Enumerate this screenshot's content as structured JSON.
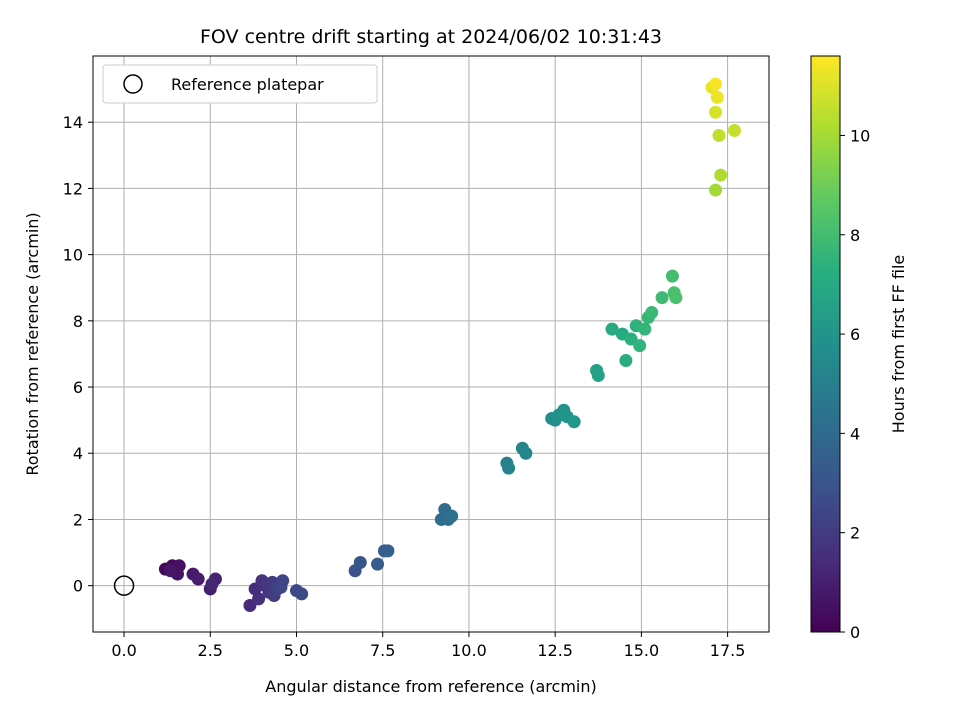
{
  "chart_data": {
    "type": "scatter",
    "title": "FOV centre drift starting at 2024/06/02 10:31:43",
    "xlabel": "Angular distance from reference (arcmin)",
    "ylabel": "Rotation from reference (arcmin)",
    "xlim": [
      -0.9,
      18.7
    ],
    "ylim": [
      -1.4,
      16.0
    ],
    "x_ticks": [
      "0.0",
      "2.5",
      "5.0",
      "7.5",
      "10.0",
      "12.5",
      "15.0",
      "17.5"
    ],
    "x_tick_values": [
      0,
      2.5,
      5,
      7.5,
      10,
      12.5,
      15,
      17.5
    ],
    "y_ticks": [
      "0",
      "2",
      "4",
      "6",
      "8",
      "10",
      "12",
      "14"
    ],
    "y_tick_values": [
      0,
      2,
      4,
      6,
      8,
      10,
      12,
      14
    ],
    "grid": true,
    "legend": {
      "placement": "top-left",
      "entries": [
        {
          "label": "Reference platepar",
          "marker": "open-circle",
          "color": "#000000"
        }
      ]
    },
    "reference_point": {
      "x": 0,
      "y": 0
    },
    "colorbar": {
      "label": "Hours from first FF file",
      "colormap": "viridis",
      "range": [
        0,
        11.6
      ],
      "ticks": [
        "0",
        "2",
        "4",
        "6",
        "8",
        "10"
      ],
      "tick_values": [
        0,
        2,
        4,
        6,
        8,
        10
      ]
    },
    "points": [
      {
        "x": 1.2,
        "y": 0.5,
        "c": 0.1
      },
      {
        "x": 1.3,
        "y": 0.5,
        "c": 0.2
      },
      {
        "x": 1.4,
        "y": 0.6,
        "c": 0.3
      },
      {
        "x": 1.5,
        "y": 0.5,
        "c": 0.4
      },
      {
        "x": 1.6,
        "y": 0.6,
        "c": 0.5
      },
      {
        "x": 1.55,
        "y": 0.35,
        "c": 0.6
      },
      {
        "x": 1.35,
        "y": 0.45,
        "c": 0.7
      },
      {
        "x": 2.0,
        "y": 0.35,
        "c": 0.8
      },
      {
        "x": 2.15,
        "y": 0.2,
        "c": 0.9
      },
      {
        "x": 2.5,
        "y": -0.1,
        "c": 1.0
      },
      {
        "x": 2.65,
        "y": 0.2,
        "c": 1.1
      },
      {
        "x": 2.55,
        "y": 0.05,
        "c": 1.2
      },
      {
        "x": 3.65,
        "y": -0.6,
        "c": 1.4
      },
      {
        "x": 3.8,
        "y": -0.1,
        "c": 1.5
      },
      {
        "x": 3.9,
        "y": -0.4,
        "c": 1.6
      },
      {
        "x": 4.0,
        "y": 0.15,
        "c": 1.7
      },
      {
        "x": 4.1,
        "y": 0.0,
        "c": 1.8
      },
      {
        "x": 4.2,
        "y": -0.2,
        "c": 1.9
      },
      {
        "x": 4.3,
        "y": 0.1,
        "c": 2.0
      },
      {
        "x": 4.35,
        "y": -0.3,
        "c": 2.1
      },
      {
        "x": 4.45,
        "y": -0.1,
        "c": 2.2
      },
      {
        "x": 4.6,
        "y": 0.15,
        "c": 2.3
      },
      {
        "x": 4.55,
        "y": -0.05,
        "c": 2.4
      },
      {
        "x": 5.0,
        "y": -0.15,
        "c": 2.5
      },
      {
        "x": 5.15,
        "y": -0.25,
        "c": 2.6
      },
      {
        "x": 6.7,
        "y": 0.45,
        "c": 3.0
      },
      {
        "x": 6.85,
        "y": 0.7,
        "c": 3.1
      },
      {
        "x": 7.35,
        "y": 0.65,
        "c": 3.3
      },
      {
        "x": 7.55,
        "y": 1.05,
        "c": 3.4
      },
      {
        "x": 7.65,
        "y": 1.05,
        "c": 3.5
      },
      {
        "x": 9.2,
        "y": 2.0,
        "c": 4.0
      },
      {
        "x": 9.3,
        "y": 2.3,
        "c": 4.1
      },
      {
        "x": 9.4,
        "y": 2.0,
        "c": 4.2
      },
      {
        "x": 9.5,
        "y": 2.1,
        "c": 4.3
      },
      {
        "x": 11.1,
        "y": 3.7,
        "c": 5.0
      },
      {
        "x": 11.15,
        "y": 3.55,
        "c": 5.1
      },
      {
        "x": 11.55,
        "y": 4.15,
        "c": 5.2
      },
      {
        "x": 11.65,
        "y": 4.0,
        "c": 5.3
      },
      {
        "x": 12.4,
        "y": 5.05,
        "c": 5.6
      },
      {
        "x": 12.5,
        "y": 5.0,
        "c": 5.7
      },
      {
        "x": 12.6,
        "y": 5.15,
        "c": 5.8
      },
      {
        "x": 12.75,
        "y": 5.3,
        "c": 5.9
      },
      {
        "x": 12.85,
        "y": 5.1,
        "c": 6.0
      },
      {
        "x": 13.05,
        "y": 4.95,
        "c": 6.1
      },
      {
        "x": 13.7,
        "y": 6.5,
        "c": 6.5
      },
      {
        "x": 13.75,
        "y": 6.35,
        "c": 6.6
      },
      {
        "x": 14.15,
        "y": 7.75,
        "c": 7.0
      },
      {
        "x": 14.45,
        "y": 7.6,
        "c": 7.1
      },
      {
        "x": 14.55,
        "y": 6.8,
        "c": 7.2
      },
      {
        "x": 14.7,
        "y": 7.45,
        "c": 7.3
      },
      {
        "x": 14.85,
        "y": 7.85,
        "c": 7.4
      },
      {
        "x": 14.95,
        "y": 7.25,
        "c": 7.5
      },
      {
        "x": 15.1,
        "y": 7.75,
        "c": 7.6
      },
      {
        "x": 15.2,
        "y": 8.1,
        "c": 7.7
      },
      {
        "x": 15.3,
        "y": 8.25,
        "c": 7.8
      },
      {
        "x": 15.6,
        "y": 8.7,
        "c": 7.9
      },
      {
        "x": 15.9,
        "y": 9.35,
        "c": 8.0
      },
      {
        "x": 15.95,
        "y": 8.85,
        "c": 8.1
      },
      {
        "x": 16.0,
        "y": 8.7,
        "c": 8.2
      },
      {
        "x": 17.15,
        "y": 11.95,
        "c": 10.0
      },
      {
        "x": 17.3,
        "y": 12.4,
        "c": 10.2
      },
      {
        "x": 17.25,
        "y": 13.6,
        "c": 10.5
      },
      {
        "x": 17.7,
        "y": 13.75,
        "c": 10.6
      },
      {
        "x": 17.15,
        "y": 14.3,
        "c": 10.9
      },
      {
        "x": 17.05,
        "y": 15.05,
        "c": 11.2
      },
      {
        "x": 17.2,
        "y": 14.75,
        "c": 11.3
      },
      {
        "x": 17.15,
        "y": 15.15,
        "c": 11.5
      }
    ]
  }
}
